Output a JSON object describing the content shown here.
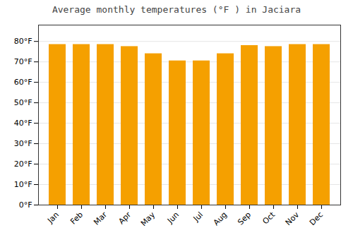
{
  "chart_data": {
    "type": "bar",
    "title": "Average monthly temperatures (°F ) in Jaciara",
    "categories": [
      "Jan",
      "Feb",
      "Mar",
      "Apr",
      "May",
      "Jun",
      "Jul",
      "Aug",
      "Sep",
      "Oct",
      "Nov",
      "Dec"
    ],
    "values": [
      78.5,
      78.5,
      78.5,
      77.5,
      74.0,
      70.5,
      70.5,
      74.0,
      78.0,
      77.5,
      78.5,
      78.5
    ],
    "color": "#F5A000",
    "ylim": [
      0,
      88
    ],
    "yticks": [
      {
        "value": 0,
        "label": "0°F"
      },
      {
        "value": 10,
        "label": "10°F"
      },
      {
        "value": 20,
        "label": "20°F"
      },
      {
        "value": 30,
        "label": "30°F"
      },
      {
        "value": 40,
        "label": "40°F"
      },
      {
        "value": 50,
        "label": "50°F"
      },
      {
        "value": 60,
        "label": "60°F"
      },
      {
        "value": 70,
        "label": "70°F"
      },
      {
        "value": 80,
        "label": "80°F"
      }
    ],
    "grid": true
  }
}
